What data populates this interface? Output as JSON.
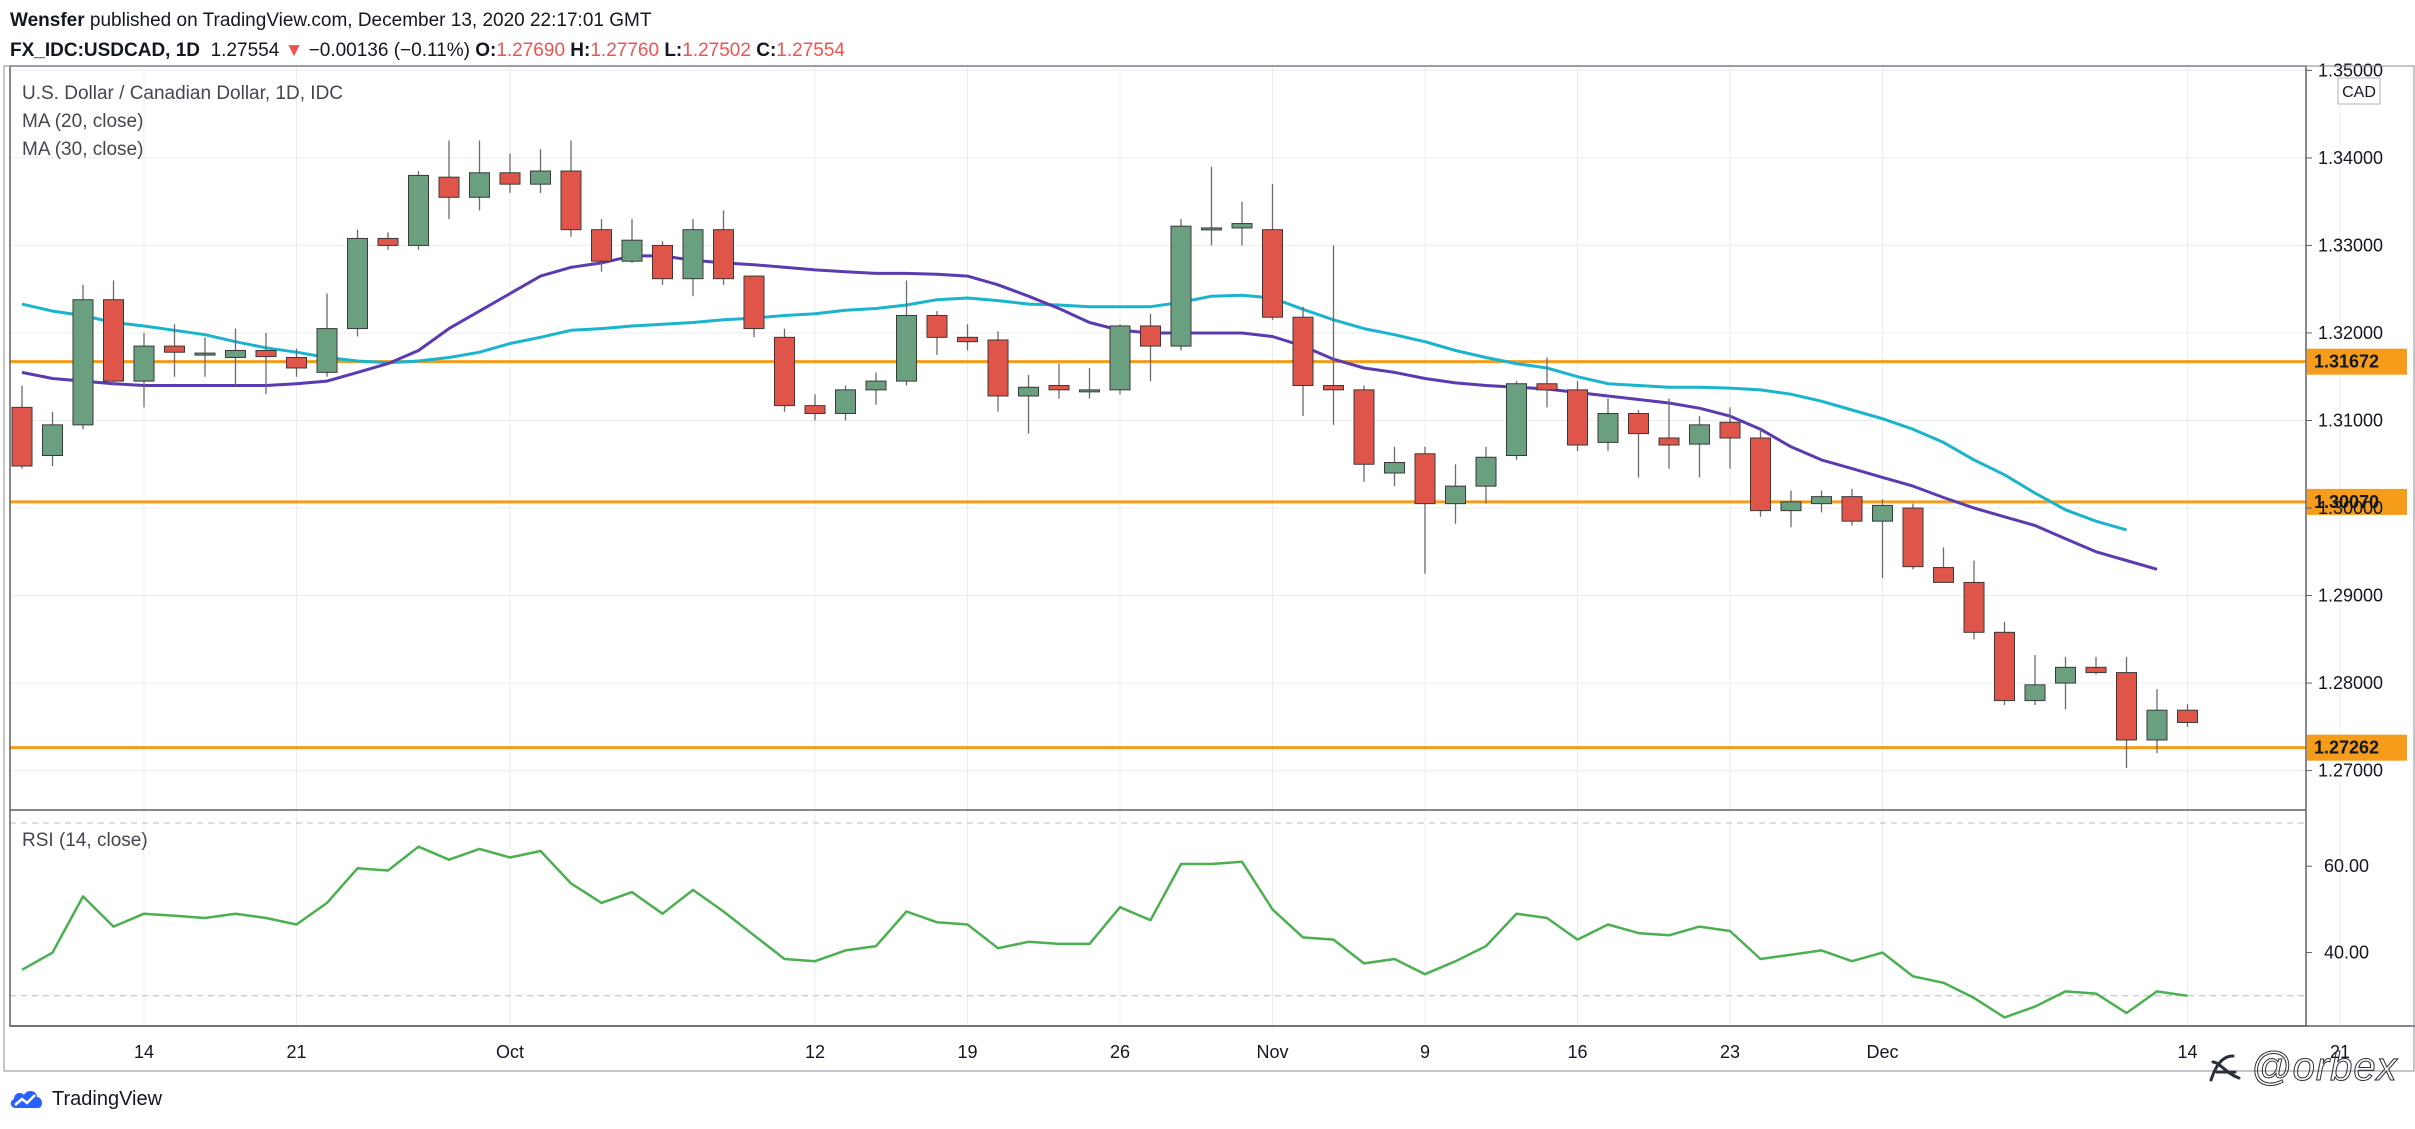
{
  "header": {
    "line1_author": "Wensfer",
    "line1_rest": " published on TradingView.com, December 13, 2020 22:17:01 GMT",
    "symbol": "FX_IDC:USDCAD, 1D",
    "last": "1.27554",
    "change_arrow": "▼",
    "change": "−0.00136 (−0.11%)",
    "o_label": "O:",
    "o_val": "1.27690",
    "h_label": "H:",
    "h_val": "1.27760",
    "l_label": "L:",
    "l_val": "1.27502",
    "c_label": "C:",
    "c_val": "1.27554"
  },
  "legend": {
    "title": "U.S. Dollar / Canadian Dollar, 1D, IDC",
    "ma20": "MA (20, close)",
    "ma30": "MA (30, close)",
    "rsi": "RSI (14, close)",
    "currency": "CAD"
  },
  "footer": {
    "brand": "TradingView",
    "watermark": "orbex"
  },
  "colors": {
    "up": "#6a9f80",
    "down": "#e0554a",
    "ma20": "#1ab4cc",
    "ma30": "#5b3bb0",
    "rsi": "#4caf50",
    "level": "#f59d1b",
    "grid": "#e9ecf0",
    "border": "#5d606b"
  },
  "chart_data": [
    {
      "type": "candlestick",
      "title": "U.S. Dollar / Canadian Dollar, 1D, IDC",
      "price_ylim": [
        1.2655,
        1.3505
      ],
      "price_ticks": [
        "1.27000",
        "1.28000",
        "1.29000",
        "1.30000",
        "1.31000",
        "1.32000",
        "1.33000",
        "1.34000",
        "1.35000"
      ],
      "price_tick_values": [
        1.27,
        1.28,
        1.29,
        1.3,
        1.31,
        1.32,
        1.33,
        1.34,
        1.35
      ],
      "x_ticks": [
        "14",
        "21",
        "Oct",
        "12",
        "19",
        "26",
        "Nov",
        "9",
        "16",
        "23",
        "Dec",
        "14",
        "21"
      ],
      "x_tick_bar_index": [
        4,
        9,
        16,
        26,
        31,
        36,
        41,
        46,
        51,
        56,
        61,
        71,
        76
      ],
      "horizontal_levels": [
        {
          "value": 1.31672,
          "label": "1.31672"
        },
        {
          "value": 1.3007,
          "label": "1.30070"
        },
        {
          "value": 1.27262,
          "label": "1.27262"
        }
      ],
      "candles": [
        {
          "o": 1.3115,
          "h": 1.314,
          "l": 1.3045,
          "c": 1.3048
        },
        {
          "o": 1.306,
          "h": 1.311,
          "l": 1.3048,
          "c": 1.3095
        },
        {
          "o": 1.3095,
          "h": 1.3255,
          "l": 1.309,
          "c": 1.3238
        },
        {
          "o": 1.3238,
          "h": 1.326,
          "l": 1.314,
          "c": 1.3145
        },
        {
          "o": 1.3145,
          "h": 1.32,
          "l": 1.3115,
          "c": 1.3185
        },
        {
          "o": 1.3185,
          "h": 1.321,
          "l": 1.315,
          "c": 1.3178
        },
        {
          "o": 1.3175,
          "h": 1.3195,
          "l": 1.315,
          "c": 1.3177
        },
        {
          "o": 1.3172,
          "h": 1.3205,
          "l": 1.314,
          "c": 1.318
        },
        {
          "o": 1.318,
          "h": 1.32,
          "l": 1.313,
          "c": 1.3173
        },
        {
          "o": 1.3172,
          "h": 1.3182,
          "l": 1.315,
          "c": 1.316
        },
        {
          "o": 1.3155,
          "h": 1.3245,
          "l": 1.315,
          "c": 1.3205
        },
        {
          "o": 1.3205,
          "h": 1.3318,
          "l": 1.3196,
          "c": 1.3308
        },
        {
          "o": 1.3308,
          "h": 1.3315,
          "l": 1.3295,
          "c": 1.33
        },
        {
          "o": 1.33,
          "h": 1.3385,
          "l": 1.3295,
          "c": 1.338
        },
        {
          "o": 1.3378,
          "h": 1.342,
          "l": 1.333,
          "c": 1.3355
        },
        {
          "o": 1.3355,
          "h": 1.342,
          "l": 1.334,
          "c": 1.3383
        },
        {
          "o": 1.3383,
          "h": 1.3405,
          "l": 1.336,
          "c": 1.337
        },
        {
          "o": 1.337,
          "h": 1.341,
          "l": 1.336,
          "c": 1.3385
        },
        {
          "o": 1.3385,
          "h": 1.342,
          "l": 1.331,
          "c": 1.3318
        },
        {
          "o": 1.3318,
          "h": 1.333,
          "l": 1.327,
          "c": 1.3282
        },
        {
          "o": 1.3282,
          "h": 1.333,
          "l": 1.328,
          "c": 1.3306
        },
        {
          "o": 1.33,
          "h": 1.3305,
          "l": 1.3255,
          "c": 1.3262
        },
        {
          "o": 1.3262,
          "h": 1.333,
          "l": 1.3242,
          "c": 1.3318
        },
        {
          "o": 1.3318,
          "h": 1.334,
          "l": 1.3255,
          "c": 1.3262
        },
        {
          "o": 1.3265,
          "h": 1.3265,
          "l": 1.3195,
          "c": 1.3205
        },
        {
          "o": 1.3195,
          "h": 1.3205,
          "l": 1.311,
          "c": 1.3117
        },
        {
          "o": 1.3117,
          "h": 1.313,
          "l": 1.31,
          "c": 1.3108
        },
        {
          "o": 1.3108,
          "h": 1.314,
          "l": 1.31,
          "c": 1.3135
        },
        {
          "o": 1.3135,
          "h": 1.3155,
          "l": 1.3118,
          "c": 1.3145
        },
        {
          "o": 1.3145,
          "h": 1.326,
          "l": 1.314,
          "c": 1.322
        },
        {
          "o": 1.322,
          "h": 1.3225,
          "l": 1.3175,
          "c": 1.3195
        },
        {
          "o": 1.3195,
          "h": 1.321,
          "l": 1.318,
          "c": 1.319
        },
        {
          "o": 1.3192,
          "h": 1.3202,
          "l": 1.311,
          "c": 1.3128
        },
        {
          "o": 1.3128,
          "h": 1.3152,
          "l": 1.3085,
          "c": 1.3138
        },
        {
          "o": 1.314,
          "h": 1.3165,
          "l": 1.3125,
          "c": 1.3135
        },
        {
          "o": 1.3135,
          "h": 1.316,
          "l": 1.3125,
          "c": 1.3135
        },
        {
          "o": 1.3135,
          "h": 1.321,
          "l": 1.313,
          "c": 1.3208
        },
        {
          "o": 1.3208,
          "h": 1.3222,
          "l": 1.3145,
          "c": 1.3185
        },
        {
          "o": 1.3185,
          "h": 1.333,
          "l": 1.318,
          "c": 1.3322
        },
        {
          "o": 1.332,
          "h": 1.339,
          "l": 1.33,
          "c": 1.332
        },
        {
          "o": 1.332,
          "h": 1.335,
          "l": 1.33,
          "c": 1.3325
        },
        {
          "o": 1.3318,
          "h": 1.337,
          "l": 1.3215,
          "c": 1.3218
        },
        {
          "o": 1.3218,
          "h": 1.323,
          "l": 1.3105,
          "c": 1.314
        },
        {
          "o": 1.314,
          "h": 1.33,
          "l": 1.3095,
          "c": 1.3135
        },
        {
          "o": 1.3135,
          "h": 1.314,
          "l": 1.303,
          "c": 1.305
        },
        {
          "o": 1.304,
          "h": 1.307,
          "l": 1.3025,
          "c": 1.3052
        },
        {
          "o": 1.3062,
          "h": 1.307,
          "l": 1.2925,
          "c": 1.3005
        },
        {
          "o": 1.3005,
          "h": 1.305,
          "l": 1.2982,
          "c": 1.3025
        },
        {
          "o": 1.3025,
          "h": 1.307,
          "l": 1.3005,
          "c": 1.3058
        },
        {
          "o": 1.306,
          "h": 1.3145,
          "l": 1.3055,
          "c": 1.3142
        },
        {
          "o": 1.3142,
          "h": 1.3172,
          "l": 1.3115,
          "c": 1.3135
        },
        {
          "o": 1.3135,
          "h": 1.3145,
          "l": 1.3065,
          "c": 1.3072
        },
        {
          "o": 1.3075,
          "h": 1.3125,
          "l": 1.3065,
          "c": 1.3108
        },
        {
          "o": 1.3108,
          "h": 1.3112,
          "l": 1.3035,
          "c": 1.3085
        },
        {
          "o": 1.308,
          "h": 1.3125,
          "l": 1.3045,
          "c": 1.3072
        },
        {
          "o": 1.3073,
          "h": 1.3105,
          "l": 1.3035,
          "c": 1.3095
        },
        {
          "o": 1.3098,
          "h": 1.3115,
          "l": 1.3045,
          "c": 1.308
        },
        {
          "o": 1.308,
          "h": 1.309,
          "l": 1.299,
          "c": 1.2997
        },
        {
          "o": 1.2997,
          "h": 1.302,
          "l": 1.2978,
          "c": 1.3007
        },
        {
          "o": 1.3005,
          "h": 1.302,
          "l": 1.2995,
          "c": 1.3013
        },
        {
          "o": 1.3013,
          "h": 1.3022,
          "l": 1.298,
          "c": 1.2985
        },
        {
          "o": 1.2985,
          "h": 1.301,
          "l": 1.292,
          "c": 1.3003
        },
        {
          "o": 1.3,
          "h": 1.3005,
          "l": 1.293,
          "c": 1.2933
        },
        {
          "o": 1.2932,
          "h": 1.2955,
          "l": 1.2915,
          "c": 1.2915
        },
        {
          "o": 1.2915,
          "h": 1.294,
          "l": 1.285,
          "c": 1.2858
        },
        {
          "o": 1.2858,
          "h": 1.287,
          "l": 1.2775,
          "c": 1.278
        },
        {
          "o": 1.278,
          "h": 1.2832,
          "l": 1.2775,
          "c": 1.2798
        },
        {
          "o": 1.28,
          "h": 1.283,
          "l": 1.277,
          "c": 1.2818
        },
        {
          "o": 1.2818,
          "h": 1.283,
          "l": 1.281,
          "c": 1.2812
        },
        {
          "o": 1.2812,
          "h": 1.283,
          "l": 1.2703,
          "c": 1.2735
        },
        {
          "o": 1.2735,
          "h": 1.2793,
          "l": 1.272,
          "c": 1.2769
        },
        {
          "o": 1.2769,
          "h": 1.2776,
          "l": 1.275,
          "c": 1.2755
        }
      ],
      "ma20": [
        1.3155,
        1.3148,
        1.3145,
        1.3142,
        1.314,
        1.314,
        1.314,
        1.314,
        1.314,
        1.3142,
        1.3145,
        1.3155,
        1.3165,
        1.318,
        1.3205,
        1.3225,
        1.3245,
        1.3265,
        1.3275,
        1.328,
        1.3288,
        1.3288,
        1.3283,
        1.328,
        1.3278,
        1.3275,
        1.3272,
        1.327,
        1.3268,
        1.3268,
        1.3267,
        1.3265,
        1.3255,
        1.3242,
        1.3228,
        1.3212,
        1.3203,
        1.32,
        1.32,
        1.32,
        1.32,
        1.3196,
        1.3185,
        1.317,
        1.316,
        1.3155,
        1.3148,
        1.3143,
        1.314,
        1.3138,
        1.3136,
        1.3132,
        1.3128,
        1.3124,
        1.312,
        1.3114,
        1.3105,
        1.309,
        1.307,
        1.3055,
        1.3045,
        1.3035,
        1.3025,
        1.3012,
        1.3,
        1.299,
        1.298,
        1.2965,
        1.295,
        1.294,
        1.293
      ],
      "ma30": [
        1.3233,
        1.3225,
        1.322,
        1.3212,
        1.3208,
        1.3203,
        1.3198,
        1.319,
        1.3183,
        1.3178,
        1.3172,
        1.3168,
        1.3166,
        1.3168,
        1.3172,
        1.3178,
        1.3188,
        1.3195,
        1.3203,
        1.3205,
        1.3208,
        1.321,
        1.3212,
        1.3215,
        1.3217,
        1.322,
        1.3222,
        1.3226,
        1.3228,
        1.3232,
        1.3238,
        1.324,
        1.3237,
        1.3233,
        1.3232,
        1.323,
        1.323,
        1.323,
        1.3235,
        1.3242,
        1.3243,
        1.324,
        1.3227,
        1.3215,
        1.3205,
        1.3198,
        1.319,
        1.318,
        1.3172,
        1.3165,
        1.316,
        1.315,
        1.3142,
        1.314,
        1.3138,
        1.3138,
        1.3137,
        1.3135,
        1.313,
        1.3122,
        1.3112,
        1.3102,
        1.309,
        1.3075,
        1.3055,
        1.3038,
        1.3017,
        1.2998,
        1.2985,
        1.2975
      ],
      "rsi_ylim": [
        23,
        73
      ],
      "rsi_ticks": [
        "60.00",
        "40.00"
      ],
      "rsi_tick_values": [
        60,
        40
      ],
      "rsi_bands": [
        70,
        30
      ],
      "rsi": [
        36,
        40,
        53,
        46,
        49,
        48.5,
        48,
        49,
        48,
        46.5,
        51.5,
        59.5,
        59,
        64.5,
        61.5,
        64,
        62,
        63.5,
        56,
        51.5,
        54,
        49,
        54.5,
        49.5,
        44,
        38.5,
        38,
        40.5,
        41.5,
        49.5,
        47,
        46.5,
        41,
        42.5,
        42,
        42,
        50.5,
        47.5,
        60.5,
        60.5,
        61,
        50,
        43.5,
        43,
        37.5,
        38.5,
        35,
        38,
        41.5,
        49,
        48,
        43,
        46.5,
        44.5,
        44,
        46,
        45,
        38.5,
        39.5,
        40.5,
        38,
        40,
        34.5,
        33,
        29.5,
        25,
        27.5,
        31,
        30.5,
        26,
        31,
        30
      ]
    }
  ]
}
